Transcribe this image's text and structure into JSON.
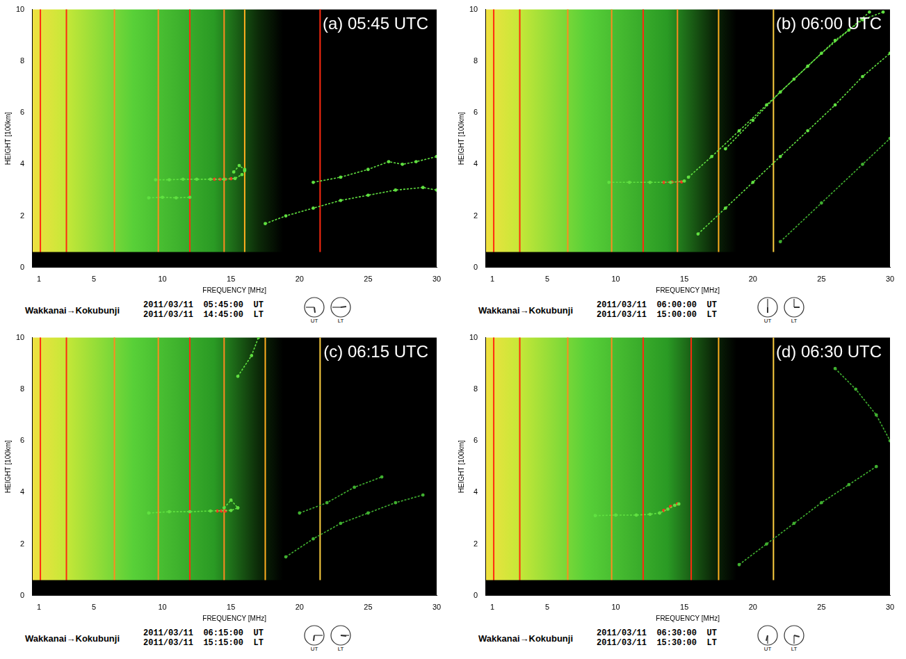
{
  "chart_data": [
    {
      "type": "scatter",
      "title": "(a) 05:45 UTC",
      "x_label": "FREQUENCY [MHz]",
      "y_label": "HEIGHT [100km]",
      "xlim": [
        0.5,
        30
      ],
      "xticks": [
        1,
        5,
        10,
        15,
        20,
        25,
        30
      ],
      "ylim": [
        0,
        10
      ],
      "yticks": [
        0,
        2,
        4,
        6,
        8,
        10
      ],
      "grid": false,
      "station": "Wakkanai→Kokubunji",
      "ut": "2011/03/11  05:45:00  UT",
      "lt": "2011/03/11  14:45:00  LT",
      "clock_labels": [
        "UT",
        "LT"
      ],
      "interference": [
        {
          "frequency": 1.1,
          "color": "#ff2a10"
        },
        {
          "frequency": 3.0,
          "color": "#ff2a10"
        },
        {
          "frequency": 6.5,
          "color": "#ff8a20"
        },
        {
          "frequency": 9.7,
          "color": "#ff8a20"
        },
        {
          "frequency": 12.0,
          "color": "#ff2a10"
        },
        {
          "frequency": 14.5,
          "color": "#ff8a20"
        },
        {
          "frequency": 16.0,
          "color": "#ffb020"
        },
        {
          "frequency": 21.5,
          "color": "#ff2a10"
        }
      ],
      "series": [
        {
          "color": "#60e040",
          "x": [
            9,
            10,
            11,
            12
          ],
          "values": [
            2.7,
            2.72,
            2.7,
            2.72
          ]
        },
        {
          "color": "#60e040",
          "x": [
            9.5,
            10.5,
            11.5,
            12.5,
            13.5,
            14.5,
            15.3,
            15.8,
            16
          ],
          "values": [
            3.4,
            3.4,
            3.42,
            3.42,
            3.42,
            3.42,
            3.45,
            3.6,
            3.75
          ]
        },
        {
          "color": "#60e040",
          "x": [
            15.2,
            15.6,
            16
          ],
          "values": [
            3.7,
            3.95,
            3.8
          ]
        },
        {
          "color": "#ff3020",
          "x": [
            13.8,
            14.2,
            14.6,
            15
          ],
          "values": [
            3.42,
            3.42,
            3.42,
            3.44
          ]
        },
        {
          "color": "#60e040",
          "x": [
            17.5,
            19,
            21,
            23,
            25,
            27,
            29,
            30
          ],
          "values": [
            1.7,
            2,
            2.3,
            2.6,
            2.8,
            3,
            3.1,
            3
          ]
        },
        {
          "color": "#60e040",
          "x": [
            21,
            23,
            25,
            26.5,
            27.5,
            28.5,
            30
          ],
          "values": [
            3.3,
            3.5,
            3.8,
            4.1,
            4.0,
            4.1,
            4.3
          ]
        }
      ]
    },
    {
      "type": "scatter",
      "title": "(b) 06:00 UTC",
      "x_label": "FREQUENCY [MHz]",
      "y_label": "HEIGHT [100km]",
      "xlim": [
        0.5,
        30
      ],
      "xticks": [
        1,
        5,
        10,
        15,
        20,
        25,
        30
      ],
      "ylim": [
        0,
        10
      ],
      "yticks": [
        0,
        2,
        4,
        6,
        8,
        10
      ],
      "grid": false,
      "station": "Wakkanai→Kokubunji",
      "ut": "2011/03/11  06:00:00  UT",
      "lt": "2011/03/11  15:00:00  LT",
      "clock_labels": [
        "UT",
        "LT"
      ],
      "interference": [
        {
          "frequency": 1.1,
          "color": "#ff2a10"
        },
        {
          "frequency": 3.0,
          "color": "#ff2a10"
        },
        {
          "frequency": 6.5,
          "color": "#ff8a20"
        },
        {
          "frequency": 9.7,
          "color": "#ff8a20"
        },
        {
          "frequency": 12.0,
          "color": "#ff2a10"
        },
        {
          "frequency": 14.5,
          "color": "#ff8a20"
        },
        {
          "frequency": 17.5,
          "color": "#ffb020"
        },
        {
          "frequency": 21.5,
          "color": "#ffd040"
        }
      ],
      "series": [
        {
          "color": "#60e040",
          "x": [
            9.5,
            11,
            12.5,
            14,
            15
          ],
          "values": [
            3.3,
            3.3,
            3.3,
            3.3,
            3.35
          ]
        },
        {
          "color": "#ff3020",
          "x": [
            13.5,
            14.1,
            14.8
          ],
          "values": [
            3.3,
            3.31,
            3.32
          ]
        },
        {
          "color": "#60e040",
          "x": [
            15.3,
            17,
            19,
            21,
            23,
            25,
            27,
            28.5
          ],
          "values": [
            3.5,
            4.3,
            5.3,
            6.3,
            7.3,
            8.3,
            9.2,
            9.9
          ]
        },
        {
          "color": "#60e040",
          "x": [
            18,
            20,
            22,
            24,
            26,
            28,
            29.5
          ],
          "values": [
            4.6,
            5.7,
            6.8,
            7.8,
            8.8,
            9.6,
            9.9
          ]
        },
        {
          "color": "#60e040",
          "x": [
            16,
            18,
            20,
            22,
            24,
            26,
            28,
            30
          ],
          "values": [
            1.3,
            2.3,
            3.3,
            4.3,
            5.3,
            6.3,
            7.4,
            8.3
          ]
        },
        {
          "color": "#40b030",
          "x": [
            22,
            25,
            28,
            30
          ],
          "values": [
            1,
            2.5,
            4,
            5
          ]
        }
      ]
    },
    {
      "type": "scatter",
      "title": "(c) 06:15 UTC",
      "x_label": "FREQUENCY [MHz]",
      "y_label": "HEIGHT [100km]",
      "xlim": [
        0.5,
        30
      ],
      "xticks": [
        1,
        5,
        10,
        15,
        20,
        25,
        30
      ],
      "ylim": [
        0,
        10
      ],
      "yticks": [
        0,
        2,
        4,
        6,
        8,
        10
      ],
      "grid": false,
      "station": "Wakkanai→Kokubunji",
      "ut": "2011/03/11  06:15:00  UT",
      "lt": "2011/03/11  15:15:00  LT",
      "clock_labels": [
        "UT",
        "LT"
      ],
      "interference": [
        {
          "frequency": 1.1,
          "color": "#ff2a10"
        },
        {
          "frequency": 3.0,
          "color": "#ff2a10"
        },
        {
          "frequency": 6.5,
          "color": "#ff8a20"
        },
        {
          "frequency": 9.7,
          "color": "#ff8a20"
        },
        {
          "frequency": 12.0,
          "color": "#ff2a10"
        },
        {
          "frequency": 14.5,
          "color": "#ff8a20"
        },
        {
          "frequency": 17.5,
          "color": "#ffb020"
        },
        {
          "frequency": 21.5,
          "color": "#ffd040"
        }
      ],
      "series": [
        {
          "color": "#60e040",
          "x": [
            9,
            10.5,
            12,
            13.5,
            15,
            15.5
          ],
          "values": [
            3.2,
            3.25,
            3.25,
            3.28,
            3.3,
            3.4
          ]
        },
        {
          "color": "#60e040",
          "x": [
            14.5,
            15,
            15.5
          ],
          "values": [
            3.4,
            3.7,
            3.4
          ]
        },
        {
          "color": "#ff3020",
          "x": [
            14,
            14.3,
            14.6
          ],
          "values": [
            3.28,
            3.28,
            3.28
          ]
        },
        {
          "color": "#60e040",
          "x": [
            15.5,
            16.5,
            17
          ],
          "values": [
            8.5,
            9.3,
            10
          ]
        },
        {
          "color": "#40b030",
          "x": [
            19,
            21,
            23,
            25,
            27,
            29
          ],
          "values": [
            1.5,
            2.2,
            2.8,
            3.2,
            3.6,
            3.9
          ]
        },
        {
          "color": "#40b030",
          "x": [
            20,
            22,
            24,
            26
          ],
          "values": [
            3.2,
            3.6,
            4.2,
            4.6
          ]
        }
      ]
    },
    {
      "type": "scatter",
      "title": "(d) 06:30 UTC",
      "x_label": "FREQUENCY [MHz]",
      "y_label": "HEIGHT [100km]",
      "xlim": [
        0.5,
        30
      ],
      "xticks": [
        1,
        5,
        10,
        15,
        20,
        25,
        30
      ],
      "ylim": [
        0,
        10
      ],
      "yticks": [
        0,
        2,
        4,
        6,
        8,
        10
      ],
      "grid": false,
      "station": "Wakkanai→Kokubunji",
      "ut": "2011/03/11  06:30:00  UT",
      "lt": "2011/03/11  15:30:00  LT",
      "clock_labels": [
        "UT",
        "LT"
      ],
      "interference": [
        {
          "frequency": 1.1,
          "color": "#ff2a10"
        },
        {
          "frequency": 3.0,
          "color": "#ff2a10"
        },
        {
          "frequency": 6.5,
          "color": "#ff8a20"
        },
        {
          "frequency": 9.7,
          "color": "#ff8a20"
        },
        {
          "frequency": 12.0,
          "color": "#ff2a10"
        },
        {
          "frequency": 15.5,
          "color": "#ff2a10"
        },
        {
          "frequency": 17.5,
          "color": "#ffb020"
        },
        {
          "frequency": 21.5,
          "color": "#ffd040"
        }
      ],
      "series": [
        {
          "color": "#60e040",
          "x": [
            8.5,
            10,
            11.5,
            12.5,
            13.2,
            13.8,
            14.3,
            14.6
          ],
          "values": [
            3.1,
            3.12,
            3.12,
            3.15,
            3.2,
            3.35,
            3.5,
            3.55
          ]
        },
        {
          "color": "#ff3020",
          "x": [
            13.5,
            14,
            14.5
          ],
          "values": [
            3.3,
            3.45,
            3.55
          ]
        },
        {
          "color": "#40b030",
          "x": [
            19,
            21,
            23,
            25,
            27,
            29
          ],
          "values": [
            1.2,
            2,
            2.8,
            3.6,
            4.3,
            5
          ]
        },
        {
          "color": "#40b030",
          "x": [
            26,
            27.5,
            29,
            30
          ],
          "values": [
            8.8,
            8,
            7,
            6
          ]
        }
      ]
    }
  ]
}
